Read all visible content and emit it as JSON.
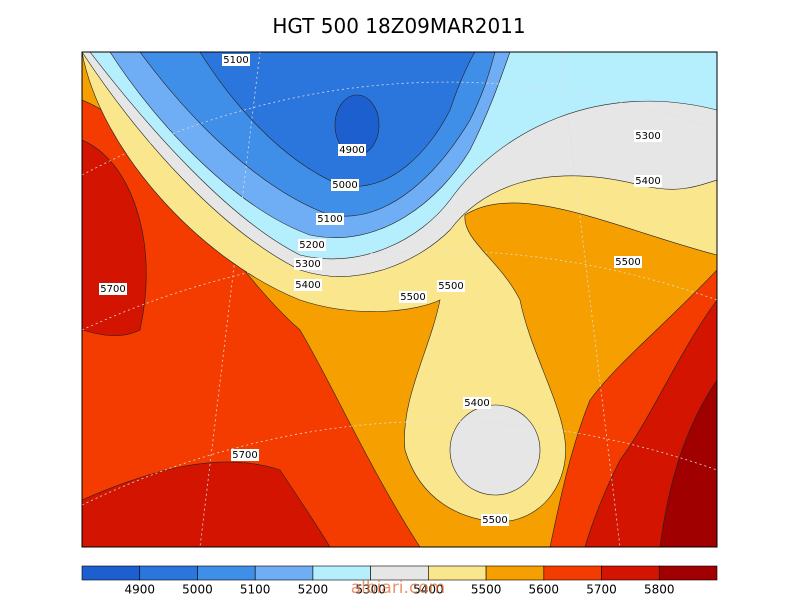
{
  "title": "HGT 500 18Z09MAR2011",
  "contour_labels": [
    5100,
    4900,
    5000,
    5100,
    5200,
    5300,
    5400,
    5700,
    5500,
    5500,
    5300,
    5400,
    5500,
    5400,
    5700,
    5500
  ],
  "colorbar": {
    "colors": [
      "#1e5fcf",
      "#2b76dc",
      "#3f8ee8",
      "#6fadf5",
      "#b5eefc",
      "#e6e6e6",
      "#fae68c",
      "#f5a000",
      "#f53c00",
      "#d21400",
      "#a00000"
    ],
    "labels": [
      4900,
      5000,
      5100,
      5200,
      5300,
      5400,
      5500,
      5600,
      5700,
      5800
    ]
  },
  "watermark": "albiari.com"
}
